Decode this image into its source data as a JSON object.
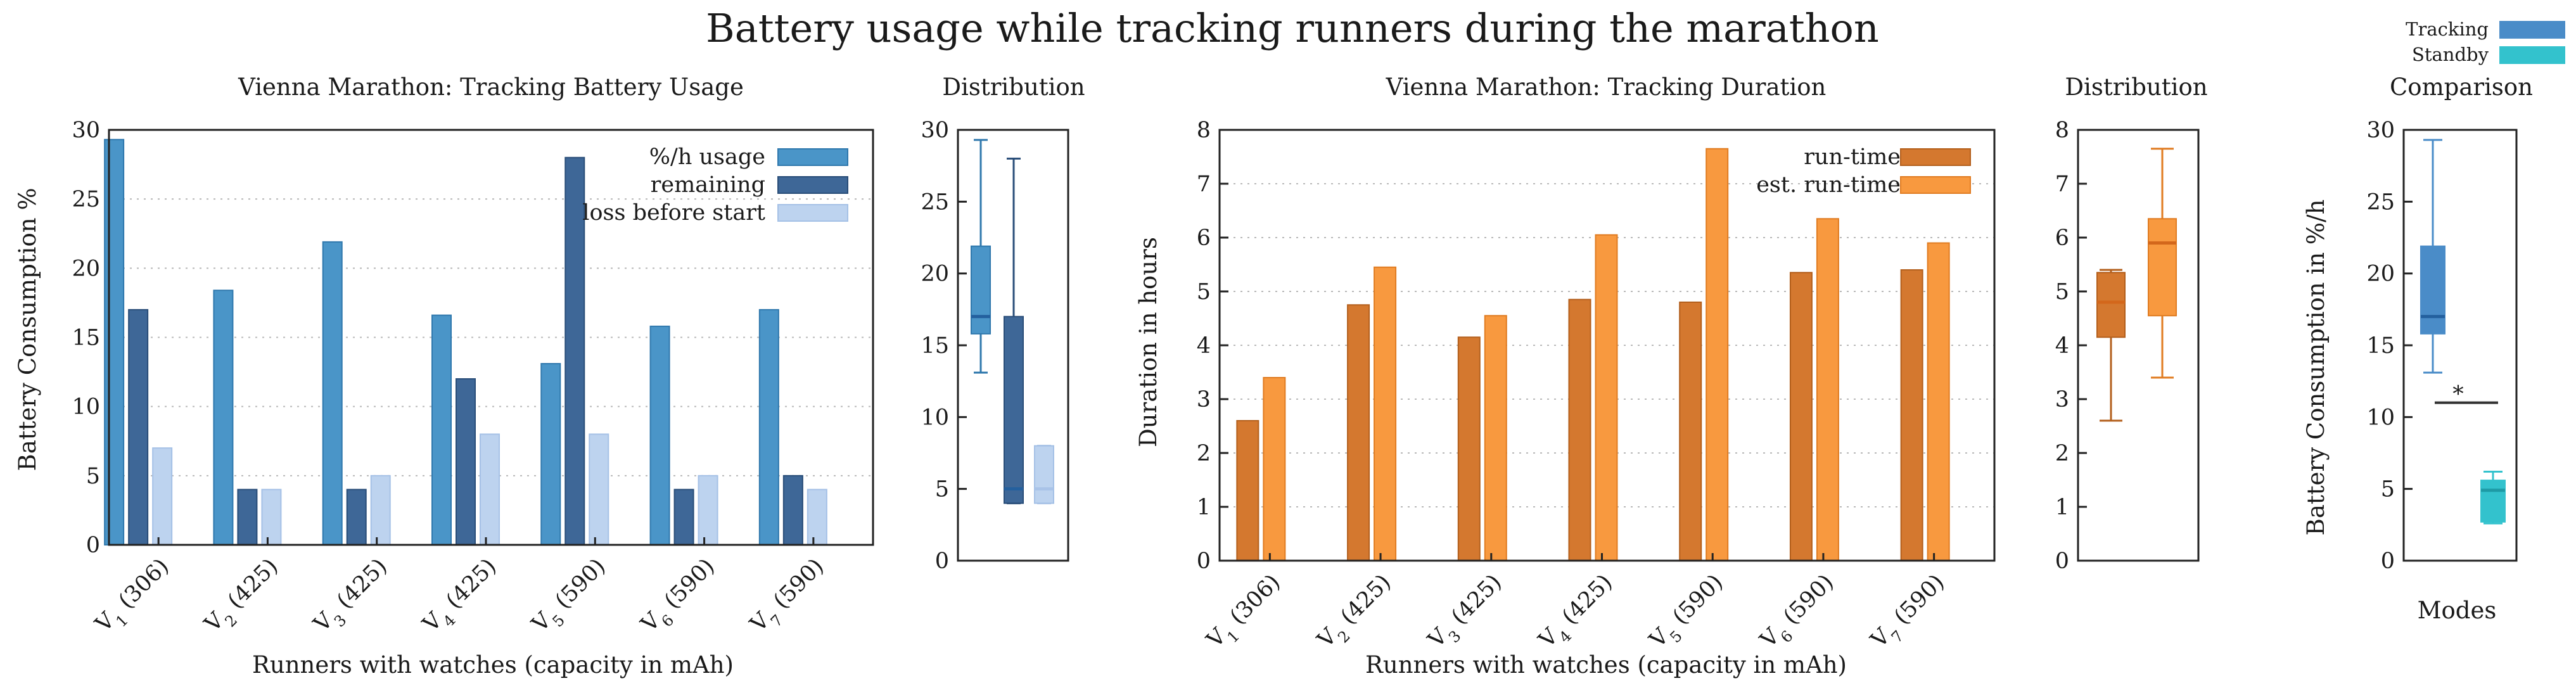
{
  "title": "Battery usage while tracking runners during the marathon",
  "colors": {
    "usage": "#4a95c8",
    "usage_edge": "#2f78ad",
    "remaining": "#3e6797",
    "remaining_edge": "#294d78",
    "loss": "#bdd3ef",
    "loss_edge": "#a5c1e6",
    "runtime": "#d4782f",
    "runtime_edge": "#b35f1c",
    "est": "#f8993f",
    "est_edge": "#e07c22",
    "tracking": "#4a8cc8",
    "standby": "#33c2cd",
    "median_blue": "#24609e",
    "median_orange": "#d3671b"
  },
  "chart_data": [
    {
      "id": "battery",
      "type": "bar",
      "title": "Vienna Marathon: Tracking Battery Usage",
      "xlabel": "Runners with watches (capacity in mAh)",
      "ylabel": "Battery Consumption %",
      "ylim": [
        0,
        30
      ],
      "yticks": [
        0,
        5,
        10,
        15,
        20,
        25,
        30
      ],
      "grid": true,
      "legend_position": "top-right",
      "categories": [
        {
          "main": "V",
          "sub": "1",
          "cap": "(306)"
        },
        {
          "main": "V",
          "sub": "2",
          "cap": "(425)"
        },
        {
          "main": "V",
          "sub": "3",
          "cap": "(425)"
        },
        {
          "main": "V",
          "sub": "4",
          "cap": "(425)"
        },
        {
          "main": "V",
          "sub": "5",
          "cap": "(590)"
        },
        {
          "main": "V",
          "sub": "6",
          "cap": "(590)"
        },
        {
          "main": "V",
          "sub": "7",
          "cap": "(590)"
        }
      ],
      "series": [
        {
          "name": "%/h usage",
          "color_key": "usage",
          "values": [
            29.3,
            18.4,
            21.9,
            16.6,
            13.1,
            15.8,
            17.0
          ]
        },
        {
          "name": "remaining",
          "color_key": "remaining",
          "values": [
            17,
            4,
            4,
            12,
            28,
            4,
            5
          ]
        },
        {
          "name": "loss before start",
          "color_key": "loss",
          "values": [
            7,
            4,
            5,
            8,
            8,
            5,
            4
          ]
        }
      ]
    },
    {
      "id": "battery_dist",
      "type": "box",
      "title": "Distribution",
      "ylim": [
        0,
        30
      ],
      "yticks": [
        0,
        5,
        10,
        15,
        20,
        25,
        30
      ],
      "boxes": [
        {
          "name": "%/h usage",
          "color_key": "usage",
          "whisker_low": 13.1,
          "q1": 15.8,
          "median": 17.0,
          "q3": 21.9,
          "whisker_high": 29.3
        },
        {
          "name": "remaining",
          "color_key": "remaining",
          "whisker_low": 4,
          "q1": 4,
          "median": 5,
          "q3": 17,
          "whisker_high": 28
        },
        {
          "name": "loss before start",
          "color_key": "loss",
          "whisker_low": 4,
          "q1": 4,
          "median": 5,
          "q3": 8,
          "whisker_high": 8
        }
      ]
    },
    {
      "id": "duration",
      "type": "bar",
      "title": "Vienna Marathon: Tracking Duration",
      "xlabel": "Runners with watches (capacity in mAh)",
      "ylabel": "Duration in hours",
      "ylim": [
        0,
        8
      ],
      "yticks": [
        0,
        1,
        2,
        3,
        4,
        5,
        6,
        7,
        8
      ],
      "grid": true,
      "legend_position": "top-right",
      "categories": [
        {
          "main": "V",
          "sub": "1",
          "cap": "(306)"
        },
        {
          "main": "V",
          "sub": "2",
          "cap": "(425)"
        },
        {
          "main": "V",
          "sub": "3",
          "cap": "(425)"
        },
        {
          "main": "V",
          "sub": "4",
          "cap": "(425)"
        },
        {
          "main": "V",
          "sub": "5",
          "cap": "(590)"
        },
        {
          "main": "V",
          "sub": "6",
          "cap": "(590)"
        },
        {
          "main": "V",
          "sub": "7",
          "cap": "(590)"
        }
      ],
      "series": [
        {
          "name": "run-time",
          "color_key": "runtime",
          "values": [
            2.6,
            4.75,
            4.15,
            4.85,
            4.8,
            5.35,
            5.4
          ]
        },
        {
          "name": "est. run-time",
          "color_key": "est",
          "values": [
            3.4,
            5.45,
            4.55,
            6.05,
            7.65,
            6.35,
            5.9
          ]
        }
      ]
    },
    {
      "id": "duration_dist",
      "type": "box",
      "title": "Distribution",
      "ylim": [
        0,
        8
      ],
      "yticks": [
        0,
        1,
        2,
        3,
        4,
        5,
        6,
        7,
        8
      ],
      "boxes": [
        {
          "name": "run-time",
          "color_key": "runtime",
          "whisker_low": 2.6,
          "q1": 4.15,
          "median": 4.8,
          "q3": 5.35,
          "whisker_high": 5.4
        },
        {
          "name": "est. run-time",
          "color_key": "est",
          "whisker_low": 3.4,
          "q1": 4.55,
          "median": 5.9,
          "q3": 6.35,
          "whisker_high": 7.65
        }
      ]
    },
    {
      "id": "comparison",
      "type": "box",
      "title": "Comparison",
      "xlabel": "Modes",
      "ylabel": "Battery Consumption in %/h",
      "ylim": [
        0,
        30
      ],
      "yticks": [
        0,
        5,
        10,
        15,
        20,
        25,
        30
      ],
      "significance": "*",
      "legend_position": "top-right",
      "boxes": [
        {
          "name": "Tracking",
          "color_key": "tracking",
          "whisker_low": 13.1,
          "q1": 15.8,
          "median": 17.0,
          "q3": 21.9,
          "whisker_high": 29.3
        },
        {
          "name": "Standby",
          "color_key": "standby",
          "whisker_low": 2.6,
          "q1": 2.7,
          "median": 4.9,
          "q3": 5.6,
          "whisker_high": 6.2
        }
      ]
    }
  ]
}
